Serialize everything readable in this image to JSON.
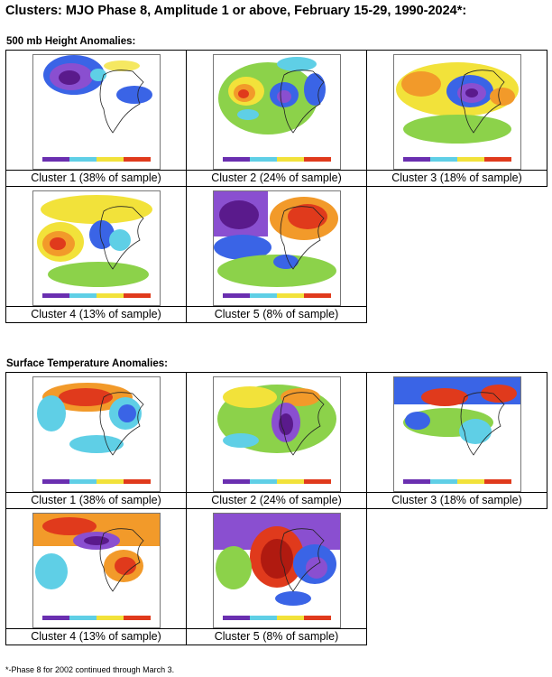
{
  "title": "Clusters: MJO Phase 8, Amplitude 1 or above, February 15-29, 1990-2024*:",
  "sections": [
    {
      "heading": "500 mb Height Anomalies:",
      "panels": [
        {
          "caption": "Cluster 1  (38% of sample)"
        },
        {
          "caption": "Cluster 2 (24% of sample)"
        },
        {
          "caption": "Cluster 3 (18% of sample)"
        },
        {
          "caption": "Cluster 4 (13% of sample)"
        },
        {
          "caption": "Cluster 5 (8% of sample)"
        }
      ]
    },
    {
      "heading": "Surface Temperature Anomalies:",
      "panels": [
        {
          "caption": "Cluster 1  (38% of sample)"
        },
        {
          "caption": "Cluster 2 (24% of sample)"
        },
        {
          "caption": "Cluster 3 (18% of sample)"
        },
        {
          "caption": "Cluster 4 (13% of sample)"
        },
        {
          "caption": "Cluster 5 (8% of sample)"
        }
      ]
    }
  ],
  "footnote": "*-Phase 8 for 2002 continued through March 3.",
  "colors": {
    "deep_negative": "#5a1a8c",
    "negative": "#8a4fd0",
    "blue": "#3a64e6",
    "cyan": "#5fcfe6",
    "green": "#8cd24a",
    "yellow": "#f2e23a",
    "orange": "#f29a2a",
    "red": "#e03a1c",
    "dark_red": "#b01a10",
    "land_outline": "#222222"
  }
}
